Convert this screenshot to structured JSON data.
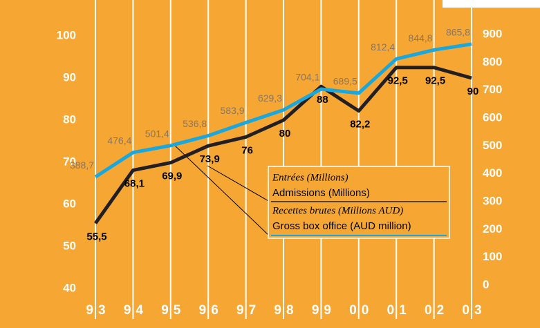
{
  "chart_data": {
    "type": "line",
    "categories": [
      "93",
      "94",
      "95",
      "96",
      "97",
      "98",
      "99",
      "00",
      "01",
      "02",
      "03"
    ],
    "series": [
      {
        "name": "Admissions (Millions)",
        "name_fr": "Entrées (Millions)",
        "color": "#231f20",
        "values": [
          55.5,
          68.1,
          69.9,
          73.9,
          76,
          80,
          88,
          82.2,
          92.5,
          92.5,
          90
        ],
        "value_labels": [
          "55,5",
          "68,1",
          "69,9",
          "73,9",
          "76",
          "80",
          "88",
          "82,2",
          "92,5",
          "92,5",
          "90"
        ]
      },
      {
        "name": "Gross box office (AUD million)",
        "name_fr": "Recettes brutes (Millions AUD)",
        "color": "#1aa7de",
        "axis": "y2",
        "values": [
          388.7,
          476.4,
          501.4,
          536.8,
          583.9,
          629.3,
          704.1,
          689.5,
          812.4,
          844.8,
          865.8
        ],
        "value_labels": [
          "388,7",
          "476,4",
          "501,4",
          "536,8",
          "583,9",
          "629,3",
          "704,1",
          "689,5",
          "812,4",
          "844,8",
          "865,8"
        ]
      }
    ],
    "ylim": [
      40,
      100
    ],
    "yticks": [
      40,
      50,
      60,
      70,
      80,
      90,
      100
    ],
    "y2lim": [
      0,
      900
    ],
    "y2ticks": [
      0,
      100,
      200,
      300,
      400,
      500,
      600,
      700,
      800,
      900
    ],
    "grid": true
  }
}
